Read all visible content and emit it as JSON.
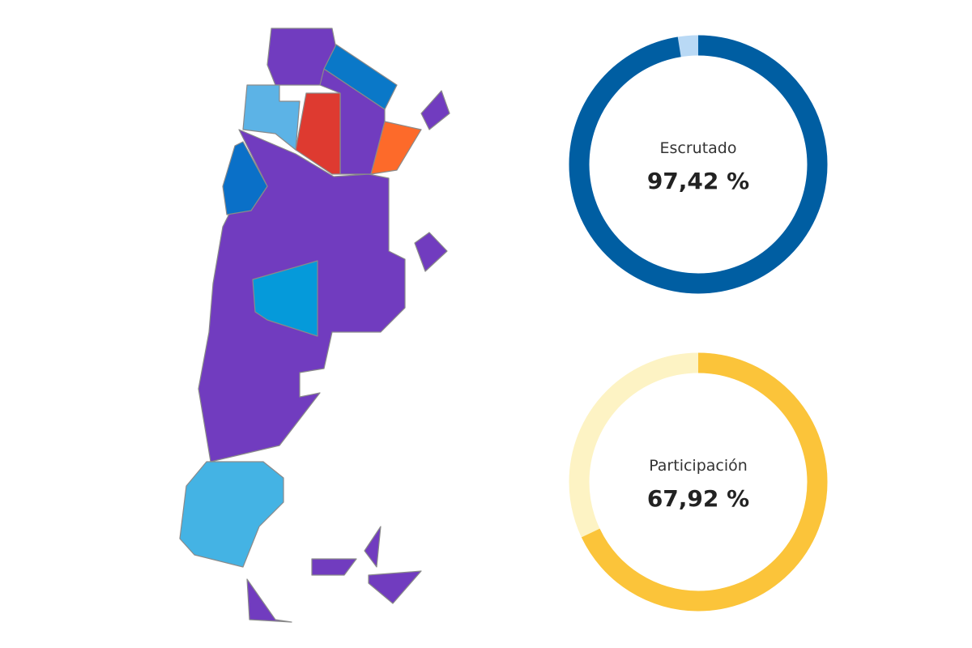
{
  "chart_data": [
    {
      "type": "gauge",
      "title": "Escrutado",
      "value": 97.42,
      "value_label": "97,42 %",
      "range": [
        0,
        100
      ],
      "color": "#005ea2",
      "track_color": "#b9d9f5"
    },
    {
      "type": "gauge",
      "title": "Participación",
      "value": 67.92,
      "value_label": "67,92 %",
      "range": [
        0,
        100
      ],
      "color": "#fbc43a",
      "track_color": "#fdf3c4"
    }
  ]
}
